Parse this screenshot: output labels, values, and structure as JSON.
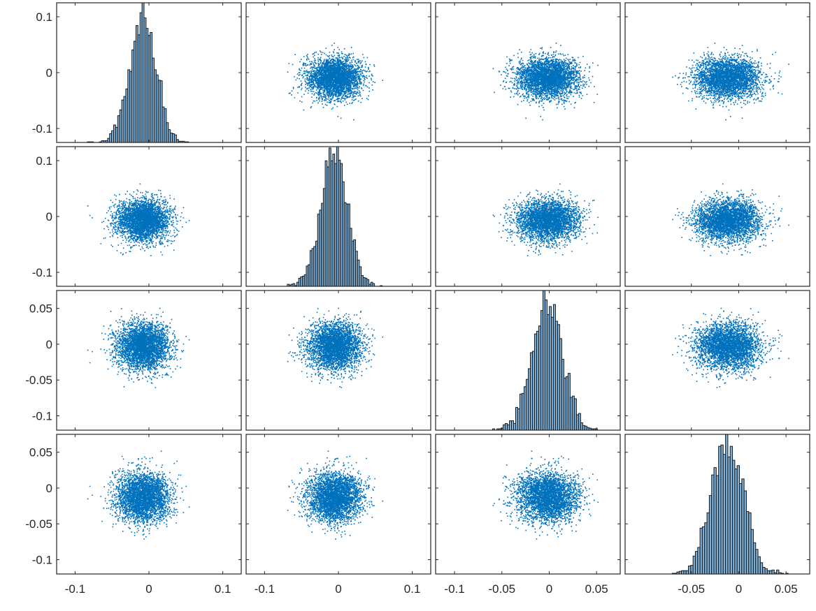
{
  "chart_data": {
    "type": "scatter",
    "layout": "4x4 scatter-plot matrix (plotmatrix); diagonal panels are histograms",
    "marker_color": "#0072BD",
    "hist_color": "#7EB1D9",
    "variables": [
      {
        "mean": -0.008,
        "sd": 0.018,
        "range": [
          -0.125,
          0.125
        ],
        "ticks": [
          -0.1,
          0,
          0.1
        ],
        "tick_labels": [
          "-0.1",
          "0",
          "0.1"
        ]
      },
      {
        "mean": -0.006,
        "sd": 0.018,
        "range": [
          -0.125,
          0.125
        ],
        "ticks": [
          -0.1,
          0,
          0.1
        ],
        "tick_labels": [
          "-0.1",
          "0",
          "0.1"
        ]
      },
      {
        "mean": -0.002,
        "sd": 0.016,
        "range": [
          -0.12,
          0.075
        ],
        "ticks": [
          -0.1,
          -0.05,
          0,
          0.05
        ],
        "tick_labels": [
          "-0.1",
          "-0.05",
          "0",
          "0.05"
        ]
      },
      {
        "mean": -0.012,
        "sd": 0.017,
        "range": [
          -0.12,
          0.075
        ],
        "ticks": [
          -0.1,
          -0.05,
          0,
          0.05
        ],
        "tick_labels": [
          "-0.1",
          "-0.05",
          "0",
          "0.05"
        ]
      }
    ],
    "x_tick_labels_col4": [
      "-0.05",
      "0",
      "0.05"
    ],
    "x_ticks_col4": [
      -0.05,
      0,
      0.05
    ],
    "correlation": 0,
    "n_points": 3500,
    "histogram_bins": 50,
    "grid": false,
    "title": "",
    "xlabel": "",
    "ylabel": ""
  }
}
